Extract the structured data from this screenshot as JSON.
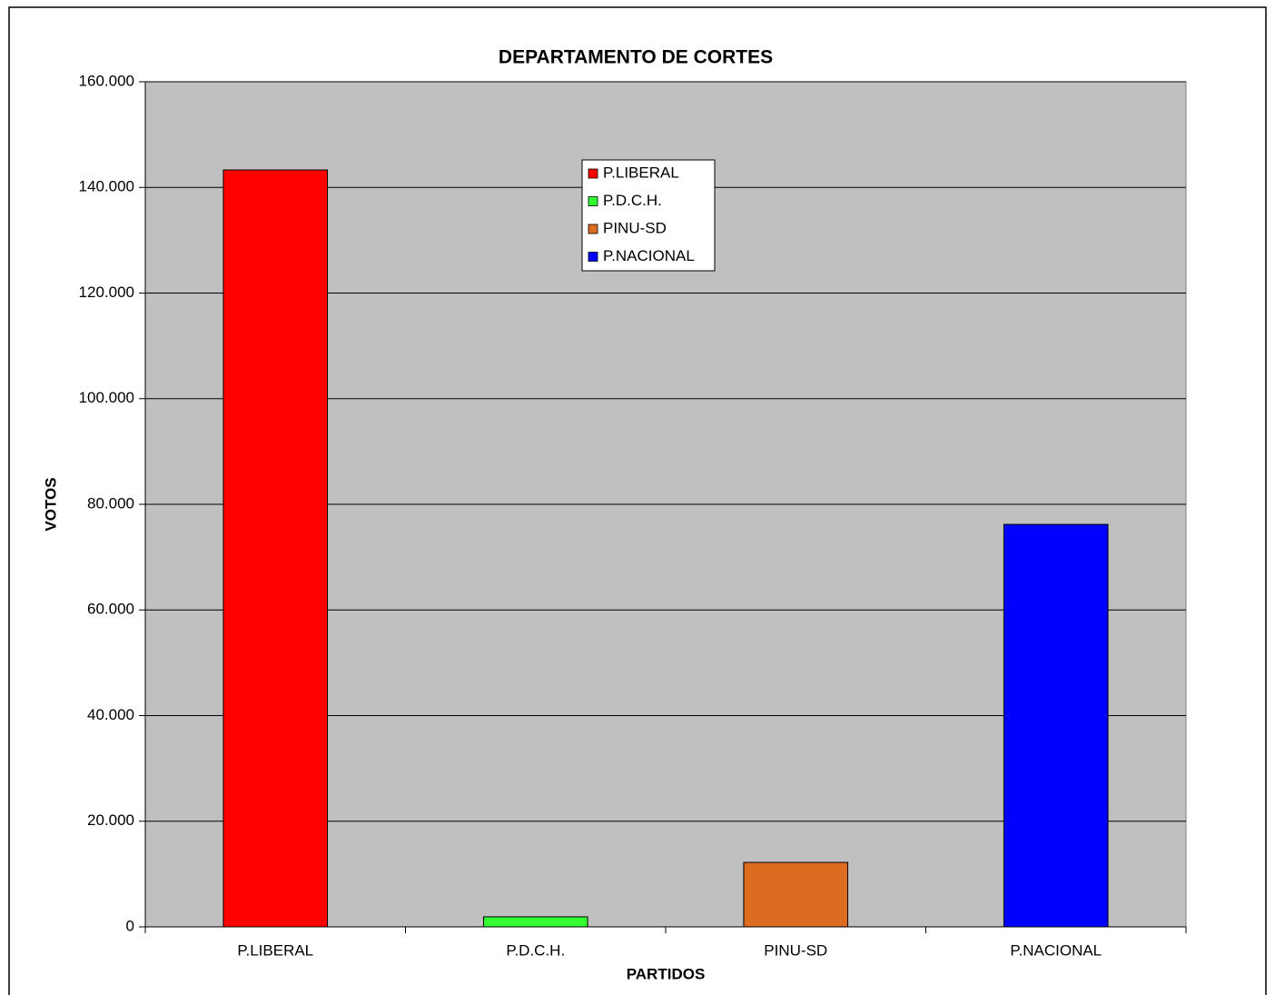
{
  "chart_data": {
    "type": "bar",
    "title": "DEPARTAMENTO DE CORTES",
    "x_label": "PARTIDOS",
    "y_label": "VOTOS",
    "categories": [
      "P.LIBERAL",
      "P.D.C.H.",
      "PINU-SD",
      "P.NACIONAL"
    ],
    "values": [
      143300,
      1900,
      12200,
      76200
    ],
    "colors": [
      "#ff0000",
      "#33ff33",
      "#dd6b20",
      "#0000ff"
    ],
    "ylim": [
      0,
      160000
    ],
    "yticks": [
      0,
      {
        "value": 20000,
        "label": "20.000"
      },
      {
        "value": 40000,
        "label": "40.000"
      },
      {
        "value": 60000,
        "label": "60.000"
      },
      {
        "value": 80000,
        "label": "80.000"
      },
      {
        "value": 100000,
        "label": "100.000"
      },
      {
        "value": 120000,
        "label": "120.000"
      },
      {
        "value": 140000,
        "label": "140.000"
      },
      {
        "value": 160000,
        "label": "160.000"
      }
    ],
    "grid": true,
    "legend": "top"
  }
}
